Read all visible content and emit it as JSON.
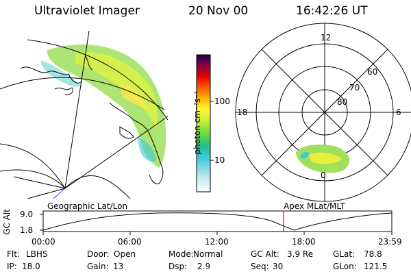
{
  "header": {
    "instrument": "Ultraviolet Imager",
    "date": "20 Nov 00",
    "time": "16:42:26 UT"
  },
  "colorbar": {
    "unit_label": "photon cm⁻²s⁻¹",
    "tick_100": "100",
    "tick_10": "10"
  },
  "polar_plot": {
    "mlt_12": "12",
    "mlt_18": "18",
    "mlt_6": "6",
    "mlt_0": "0",
    "lat_60": "60",
    "lat_70": "70",
    "lat_80": "80"
  },
  "timeline": {
    "left_title": "Geographic Lat/Lon",
    "right_title": "Apex MLat/MLT",
    "axis_label": "GC Alt",
    "y_top": "9.0",
    "y_bottom": "1.8",
    "x_ticks": [
      "00:00",
      "06:00",
      "12:00",
      "18:00",
      "23:59"
    ],
    "current_marker_color": "#ff0000"
  },
  "info": {
    "row1": [
      {
        "key": "Flt:",
        "value": "LBHS"
      },
      {
        "key": "Door:",
        "value": "Open"
      },
      {
        "key": "Mode:",
        "value": "Normal"
      },
      {
        "key": "GC Alt:",
        "value": "3.9 Re"
      },
      {
        "key": "GLat:",
        "value": "78.8"
      }
    ],
    "row2": [
      {
        "key": "IP:",
        "value": "18.0"
      },
      {
        "key": "Gain:",
        "value": "13"
      },
      {
        "key": "Dsp:",
        "value": "2.9"
      },
      {
        "key": "Seq:",
        "value": "30"
      },
      {
        "key": "GLon:",
        "value": "121.5"
      }
    ]
  }
}
